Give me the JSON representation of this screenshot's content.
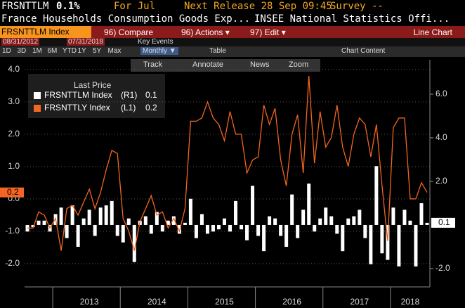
{
  "header": {
    "ticker": "FRSNTTLM",
    "value": "0.1%",
    "period": "For Jul",
    "release": "Next Release 28 Sep 09:45",
    "survey": "Survey --",
    "description": "France Households Consumption Goods Exp...",
    "source": "INSEE National Statistics Offi..."
  },
  "toolbar": {
    "security": "FRSNTTLM Index",
    "menus": [
      "96) Compare",
      "96) Actions ▾",
      "97) Edit ▾"
    ],
    "chart_kind": "Line Chart",
    "start_date": "08/31/2012",
    "end_date": "07/31/2018",
    "key_events": "Key Events",
    "ranges": [
      "1D",
      "3D",
      "1M",
      "6M",
      "YTD",
      "1Y",
      "5Y",
      "Max"
    ],
    "frequency": "Monthly ▼",
    "table": "Table",
    "chart_content": "Chart Content",
    "tools": [
      "Track",
      "Annotate",
      "News",
      "Zoom"
    ]
  },
  "chart_data": {
    "type": "combo",
    "legend_title": "Last Price",
    "categories": [
      null,
      null,
      null,
      null,
      null,
      null,
      null,
      null,
      null,
      null,
      null,
      "2013",
      null,
      null,
      null,
      null,
      null,
      null,
      null,
      null,
      null,
      null,
      null,
      "2014",
      null,
      null,
      null,
      null,
      null,
      null,
      null,
      null,
      null,
      null,
      null,
      "2015",
      null,
      null,
      null,
      null,
      null,
      null,
      null,
      null,
      null,
      null,
      null,
      "2016",
      null,
      null,
      null,
      null,
      null,
      null,
      null,
      null,
      null,
      null,
      null,
      "2017",
      null,
      null,
      null,
      null,
      null,
      null,
      null,
      null,
      "2018",
      null,
      null,
      null
    ],
    "series": [
      {
        "name": "FRSNTTLM Index",
        "axis_label": "(R1)",
        "type": "bar",
        "axis": "y2",
        "color": "#ffffff",
        "values": [
          -0.3,
          -0.1,
          0.2,
          0.2,
          -0.3,
          0.5,
          0.8,
          -0.6,
          0.9,
          -1.0,
          0.3,
          0.7,
          -0.5,
          0.8,
          0.9,
          1.1,
          -0.5,
          -0.8,
          0.3,
          -1.7,
          0.2,
          0.4,
          -0.4,
          0.6,
          -0.3,
          0.2,
          0.4,
          -0.4,
          0.1,
          1.2,
          -0.6,
          0.5,
          -0.4,
          -0.3,
          -0.2,
          0.3,
          -0.3,
          1.1,
          -0.2,
          -0.7,
          1.8,
          -0.5,
          -1.2,
          0.4,
          0.3,
          -0.5,
          -1.0,
          1.4,
          -0.6,
          0.7,
          1.9,
          -0.3,
          0.3,
          0.8,
          0.4,
          -0.4,
          -1.2,
          0.3,
          0.4,
          0.7,
          -0.6,
          -1.8,
          2.7,
          -1.3,
          -1.6,
          0.8,
          -1.9,
          0.7,
          0.2,
          -1.9,
          1.0,
          0.1
        ]
      },
      {
        "name": "FRSNTTLY Index",
        "axis_label": "(L1)",
        "type": "line",
        "axis": "y",
        "color": "#f26522",
        "values": [
          -0.9,
          -0.9,
          -0.4,
          -0.5,
          -0.9,
          -0.6,
          -1.6,
          -0.3,
          -0.2,
          -0.5,
          -0.1,
          0.3,
          -0.3,
          0.2,
          0.9,
          1.5,
          1.4,
          -0.6,
          -1.0,
          -1.6,
          -0.7,
          -0.3,
          0.1,
          -0.5,
          -0.4,
          -0.9,
          -0.6,
          -1.0,
          -0.3,
          2.4,
          2.4,
          2.5,
          3.0,
          2.5,
          2.3,
          1.8,
          2.7,
          2.0,
          2.0,
          0.8,
          1.2,
          1.3,
          2.9,
          2.3,
          2.8,
          1.2,
          0.4,
          2.0,
          2.6,
          0.8,
          3.8,
          1.1,
          2.7,
          1.6,
          1.9,
          2.9,
          1.6,
          1.0,
          2.0,
          2.5,
          2.3,
          1.3,
          2.3,
          0.4,
          -1.3,
          2.2,
          2.5,
          2.5,
          0.0,
          0.0,
          0.5,
          0.2
        ]
      }
    ],
    "ylim": [
      -2.72,
      4.3
    ],
    "yticks": [
      {
        "value": 4,
        "label": "4.0"
      },
      {
        "value": 3,
        "label": "3.0"
      },
      {
        "value": 2,
        "label": "2.0"
      },
      {
        "value": 1,
        "label": "1.0"
      },
      {
        "value": 0,
        "label": "0.0"
      },
      {
        "value": -1,
        "label": "-1.0"
      },
      {
        "value": -2,
        "label": "-2.0"
      }
    ],
    "y2lim": [
      -2.84,
      7.58
    ],
    "y2ticks": [
      {
        "value": 6,
        "label": "6.0"
      },
      {
        "value": 4,
        "label": "4.0"
      },
      {
        "value": 2,
        "label": "2.0"
      },
      {
        "value": -2,
        "label": "-2.0"
      }
    ],
    "grid": true
  }
}
